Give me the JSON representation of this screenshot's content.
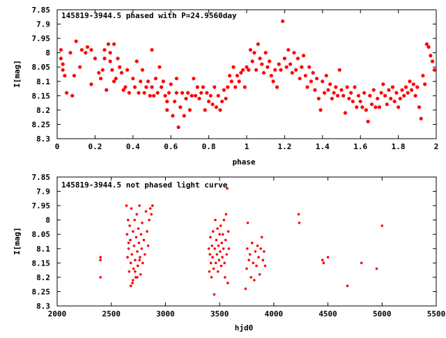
{
  "chart_data": [
    {
      "type": "scatter",
      "title": "145819-3944.5 phased with P=24.9560day",
      "xlabel": "phase",
      "ylabel": "I[mag]",
      "xlim": [
        0,
        2
      ],
      "ylim": [
        7.85,
        8.3
      ],
      "y_inverted": true,
      "xticks": [
        "0",
        "0.2",
        "0.4",
        "0.6",
        "0.8",
        "1",
        "1.2",
        "1.4",
        "1.6",
        "1.8",
        "2"
      ],
      "yticks": [
        "7.85",
        "7.9",
        "7.95",
        "8",
        "8.05",
        "8.1",
        "8.15",
        "8.2",
        "8.25",
        "8.3"
      ],
      "point_color": "#ff0000",
      "points": [
        [
          0.02,
          7.99
        ],
        [
          0.02,
          8.02
        ],
        [
          0.03,
          8.04
        ],
        [
          0.03,
          8.06
        ],
        [
          0.04,
          8.08
        ],
        [
          0.05,
          8.14
        ],
        [
          0.07,
          8.0
        ],
        [
          0.08,
          8.15
        ],
        [
          0.09,
          8.08
        ],
        [
          0.1,
          7.96
        ],
        [
          0.12,
          8.05
        ],
        [
          0.13,
          7.99
        ],
        [
          0.15,
          8.0
        ],
        [
          0.16,
          7.98
        ],
        [
          0.18,
          8.11
        ],
        [
          0.18,
          7.99
        ],
        [
          0.2,
          8.02
        ],
        [
          0.22,
          8.07
        ],
        [
          0.23,
          8.09
        ],
        [
          0.24,
          8.06
        ],
        [
          0.25,
          8.02
        ],
        [
          0.25,
          7.99
        ],
        [
          0.26,
          8.13
        ],
        [
          0.27,
          7.97
        ],
        [
          0.28,
          8.0
        ],
        [
          0.28,
          8.03
        ],
        [
          0.29,
          8.06
        ],
        [
          0.3,
          8.1
        ],
        [
          0.3,
          7.97
        ],
        [
          0.31,
          8.09
        ],
        [
          0.32,
          8.02
        ],
        [
          0.33,
          8.05
        ],
        [
          0.34,
          8.07
        ],
        [
          0.35,
          8.13
        ],
        [
          0.36,
          8.12
        ],
        [
          0.37,
          8.06
        ],
        [
          0.38,
          8.14
        ],
        [
          0.4,
          8.09
        ],
        [
          0.41,
          8.12
        ],
        [
          0.42,
          8.03
        ],
        [
          0.43,
          8.14
        ],
        [
          0.44,
          8.1
        ],
        [
          0.45,
          8.06
        ],
        [
          0.46,
          8.14
        ],
        [
          0.47,
          8.12
        ],
        [
          0.48,
          8.1
        ],
        [
          0.49,
          8.15
        ],
        [
          0.5,
          7.99
        ],
        [
          0.5,
          8.12
        ],
        [
          0.51,
          8.15
        ],
        [
          0.52,
          8.09
        ],
        [
          0.53,
          8.14
        ],
        [
          0.54,
          8.05
        ],
        [
          0.55,
          8.12
        ],
        [
          0.56,
          8.1
        ],
        [
          0.57,
          8.15
        ],
        [
          0.58,
          8.17
        ],
        [
          0.58,
          8.2
        ],
        [
          0.59,
          8.14
        ],
        [
          0.6,
          8.11
        ],
        [
          0.61,
          8.22
        ],
        [
          0.62,
          8.17
        ],
        [
          0.63,
          8.14
        ],
        [
          0.63,
          8.09
        ],
        [
          0.64,
          8.26
        ],
        [
          0.65,
          8.19
        ],
        [
          0.66,
          8.14
        ],
        [
          0.67,
          8.22
        ],
        [
          0.68,
          8.16
        ],
        [
          0.69,
          8.14
        ],
        [
          0.7,
          8.2
        ],
        [
          0.71,
          8.15
        ],
        [
          0.72,
          8.09
        ],
        [
          0.73,
          8.15
        ],
        [
          0.74,
          8.12
        ],
        [
          0.75,
          8.16
        ],
        [
          0.76,
          8.14
        ],
        [
          0.77,
          8.12
        ],
        [
          0.78,
          8.2
        ],
        [
          0.79,
          8.14
        ],
        [
          0.8,
          8.17
        ],
        [
          0.81,
          8.15
        ],
        [
          0.82,
          8.18
        ],
        [
          0.83,
          8.12
        ],
        [
          0.84,
          8.19
        ],
        [
          0.85,
          8.15
        ],
        [
          0.86,
          8.2
        ],
        [
          0.87,
          8.17
        ],
        [
          0.88,
          8.13
        ],
        [
          0.89,
          8.16
        ],
        [
          0.9,
          8.12
        ],
        [
          0.91,
          8.08
        ],
        [
          0.92,
          8.1
        ],
        [
          0.93,
          8.05
        ],
        [
          0.94,
          8.12
        ],
        [
          0.95,
          8.08
        ],
        [
          0.96,
          8.1
        ],
        [
          0.97,
          8.07
        ],
        [
          0.98,
          8.06
        ],
        [
          0.99,
          8.12
        ],
        [
          1.0,
          8.05
        ],
        [
          1.01,
          8.06
        ],
        [
          1.02,
          7.99
        ],
        [
          1.03,
          8.03
        ],
        [
          1.04,
          8.0
        ],
        [
          1.05,
          8.06
        ],
        [
          1.06,
          7.97
        ],
        [
          1.07,
          8.02
        ],
        [
          1.08,
          8.04
        ],
        [
          1.09,
          8.07
        ],
        [
          1.1,
          8.0
        ],
        [
          1.11,
          8.05
        ],
        [
          1.12,
          8.03
        ],
        [
          1.13,
          8.08
        ],
        [
          1.14,
          8.1
        ],
        [
          1.15,
          8.06
        ],
        [
          1.16,
          8.12
        ],
        [
          1.17,
          8.04
        ],
        [
          1.18,
          8.06
        ],
        [
          1.19,
          7.89
        ],
        [
          1.2,
          8.02
        ],
        [
          1.21,
          8.05
        ],
        [
          1.22,
          7.99
        ],
        [
          1.23,
          8.04
        ],
        [
          1.24,
          8.07
        ],
        [
          1.25,
          8.0
        ],
        [
          1.26,
          8.06
        ],
        [
          1.27,
          8.02
        ],
        [
          1.28,
          8.09
        ],
        [
          1.29,
          8.05
        ],
        [
          1.3,
          8.01
        ],
        [
          1.31,
          8.08
        ],
        [
          1.32,
          8.12
        ],
        [
          1.33,
          8.05
        ],
        [
          1.34,
          8.1
        ],
        [
          1.35,
          8.07
        ],
        [
          1.36,
          8.13
        ],
        [
          1.37,
          8.09
        ],
        [
          1.38,
          8.16
        ],
        [
          1.39,
          8.2
        ],
        [
          1.4,
          8.1
        ],
        [
          1.41,
          8.14
        ],
        [
          1.42,
          8.08
        ],
        [
          1.43,
          8.13
        ],
        [
          1.44,
          8.11
        ],
        [
          1.45,
          8.16
        ],
        [
          1.46,
          8.14
        ],
        [
          1.47,
          8.12
        ],
        [
          1.48,
          8.15
        ],
        [
          1.49,
          8.06
        ],
        [
          1.5,
          8.13
        ],
        [
          1.51,
          8.15
        ],
        [
          1.52,
          8.21
        ],
        [
          1.53,
          8.12
        ],
        [
          1.54,
          8.16
        ],
        [
          1.55,
          8.14
        ],
        [
          1.56,
          8.17
        ],
        [
          1.57,
          8.12
        ],
        [
          1.58,
          8.19
        ],
        [
          1.59,
          8.15
        ],
        [
          1.6,
          8.17
        ],
        [
          1.61,
          8.19
        ],
        [
          1.62,
          8.14
        ],
        [
          1.63,
          8.2
        ],
        [
          1.64,
          8.24
        ],
        [
          1.65,
          8.15
        ],
        [
          1.66,
          8.18
        ],
        [
          1.67,
          8.13
        ],
        [
          1.68,
          8.19
        ],
        [
          1.69,
          8.16
        ],
        [
          1.7,
          8.19
        ],
        [
          1.71,
          8.14
        ],
        [
          1.72,
          8.11
        ],
        [
          1.73,
          8.15
        ],
        [
          1.74,
          8.18
        ],
        [
          1.75,
          8.13
        ],
        [
          1.76,
          8.16
        ],
        [
          1.77,
          8.12
        ],
        [
          1.78,
          8.17
        ],
        [
          1.79,
          8.14
        ],
        [
          1.8,
          8.19
        ],
        [
          1.81,
          8.16
        ],
        [
          1.82,
          8.13
        ],
        [
          1.83,
          8.15
        ],
        [
          1.84,
          8.12
        ],
        [
          1.85,
          8.14
        ],
        [
          1.86,
          8.1
        ],
        [
          1.87,
          8.13
        ],
        [
          1.88,
          8.11
        ],
        [
          1.89,
          8.15
        ],
        [
          1.9,
          8.12
        ],
        [
          1.91,
          8.19
        ],
        [
          1.92,
          8.23
        ],
        [
          1.93,
          8.08
        ],
        [
          1.94,
          8.11
        ],
        [
          1.95,
          7.97
        ],
        [
          1.96,
          7.98
        ],
        [
          1.97,
          8.01
        ],
        [
          1.98,
          8.03
        ],
        [
          1.99,
          8.06
        ]
      ]
    },
    {
      "type": "scatter",
      "title": "145819-3944.5 not phased light curve",
      "xlabel": "hjd0",
      "ylabel": "I[mag]",
      "xlim": [
        2000,
        5500
      ],
      "ylim": [
        7.85,
        8.3
      ],
      "y_inverted": true,
      "xticks": [
        "2000",
        "2500",
        "3000",
        "3500",
        "4000",
        "4500",
        "5000",
        "5500"
      ],
      "yticks": [
        "7.85",
        "7.9",
        "7.95",
        "8",
        "8.05",
        "8.1",
        "8.15",
        "8.2",
        "8.25",
        "8.3"
      ],
      "point_color": "#ff0000",
      "points": [
        [
          2400,
          8.13
        ],
        [
          2400,
          8.14
        ],
        [
          2400,
          8.2
        ],
        [
          2640,
          7.95
        ],
        [
          2645,
          8.05
        ],
        [
          2650,
          8.13
        ],
        [
          2655,
          8.0
        ],
        [
          2660,
          8.1
        ],
        [
          2665,
          8.18
        ],
        [
          2670,
          8.02
        ],
        [
          2675,
          8.07
        ],
        [
          2680,
          8.15
        ],
        [
          2685,
          7.96
        ],
        [
          2690,
          8.12
        ],
        [
          2695,
          8.22
        ],
        [
          2700,
          8.04
        ],
        [
          2705,
          8.17
        ],
        [
          2710,
          8.09
        ],
        [
          2715,
          8.0
        ],
        [
          2720,
          8.14
        ],
        [
          2725,
          8.2
        ],
        [
          2730,
          8.06
        ],
        [
          2735,
          7.98
        ],
        [
          2740,
          8.11
        ],
        [
          2745,
          8.16
        ],
        [
          2750,
          8.03
        ],
        [
          2755,
          8.08
        ],
        [
          2760,
          7.95
        ],
        [
          2765,
          8.13
        ],
        [
          2770,
          8.19
        ],
        [
          2775,
          8.05
        ],
        [
          2780,
          8.1
        ],
        [
          2785,
          8.01
        ],
        [
          2790,
          8.15
        ],
        [
          2800,
          8.07
        ],
        [
          2810,
          8.12
        ],
        [
          2820,
          7.97
        ],
        [
          2830,
          8.04
        ],
        [
          2840,
          8.09
        ],
        [
          2850,
          8.0
        ],
        [
          2860,
          7.96
        ],
        [
          2870,
          7.98
        ],
        [
          2880,
          7.95
        ],
        [
          2680,
          8.23
        ],
        [
          2700,
          8.21
        ],
        [
          2720,
          8.18
        ],
        [
          2660,
          8.08
        ],
        [
          2740,
          8.2
        ],
        [
          2760,
          8.14
        ],
        [
          3400,
          8.1
        ],
        [
          3405,
          8.18
        ],
        [
          3410,
          8.12
        ],
        [
          3415,
          8.06
        ],
        [
          3420,
          8.15
        ],
        [
          3425,
          8.2
        ],
        [
          3430,
          8.09
        ],
        [
          3435,
          8.13
        ],
        [
          3440,
          8.04
        ],
        [
          3445,
          8.17
        ],
        [
          3450,
          8.26
        ],
        [
          3455,
          8.1
        ],
        [
          3460,
          8.0
        ],
        [
          3465,
          8.15
        ],
        [
          3470,
          8.07
        ],
        [
          3475,
          8.12
        ],
        [
          3480,
          8.03
        ],
        [
          3485,
          8.18
        ],
        [
          3490,
          8.09
        ],
        [
          3495,
          8.14
        ],
        [
          3500,
          8.05
        ],
        [
          3505,
          8.11
        ],
        [
          3510,
          8.02
        ],
        [
          3515,
          8.16
        ],
        [
          3520,
          8.08
        ],
        [
          3525,
          8.13
        ],
        [
          3530,
          8.05
        ],
        [
          3535,
          8.1
        ],
        [
          3540,
          8.0
        ],
        [
          3545,
          8.15
        ],
        [
          3550,
          8.2
        ],
        [
          3555,
          8.07
        ],
        [
          3560,
          7.98
        ],
        [
          3565,
          8.12
        ],
        [
          3570,
          7.89
        ],
        [
          3575,
          8.22
        ],
        [
          3580,
          8.04
        ],
        [
          3585,
          8.1
        ],
        [
          3740,
          8.24
        ],
        [
          3750,
          8.17
        ],
        [
          3755,
          8.1
        ],
        [
          3760,
          8.01
        ],
        [
          3770,
          8.14
        ],
        [
          3780,
          8.12
        ],
        [
          3790,
          8.2
        ],
        [
          3800,
          8.08
        ],
        [
          3810,
          8.15
        ],
        [
          3820,
          8.21
        ],
        [
          3830,
          8.11
        ],
        [
          3840,
          8.16
        ],
        [
          3850,
          8.09
        ],
        [
          3860,
          8.13
        ],
        [
          3870,
          8.19
        ],
        [
          3880,
          8.1
        ],
        [
          3890,
          8.06
        ],
        [
          3900,
          8.14
        ],
        [
          3910,
          8.11
        ],
        [
          3920,
          8.16
        ],
        [
          4230,
          7.98
        ],
        [
          4235,
          8.01
        ],
        [
          4450,
          8.14
        ],
        [
          4460,
          8.15
        ],
        [
          4500,
          8.13
        ],
        [
          4680,
          8.23
        ],
        [
          4810,
          8.15
        ],
        [
          4950,
          8.17
        ],
        [
          5000,
          8.02
        ]
      ]
    }
  ]
}
